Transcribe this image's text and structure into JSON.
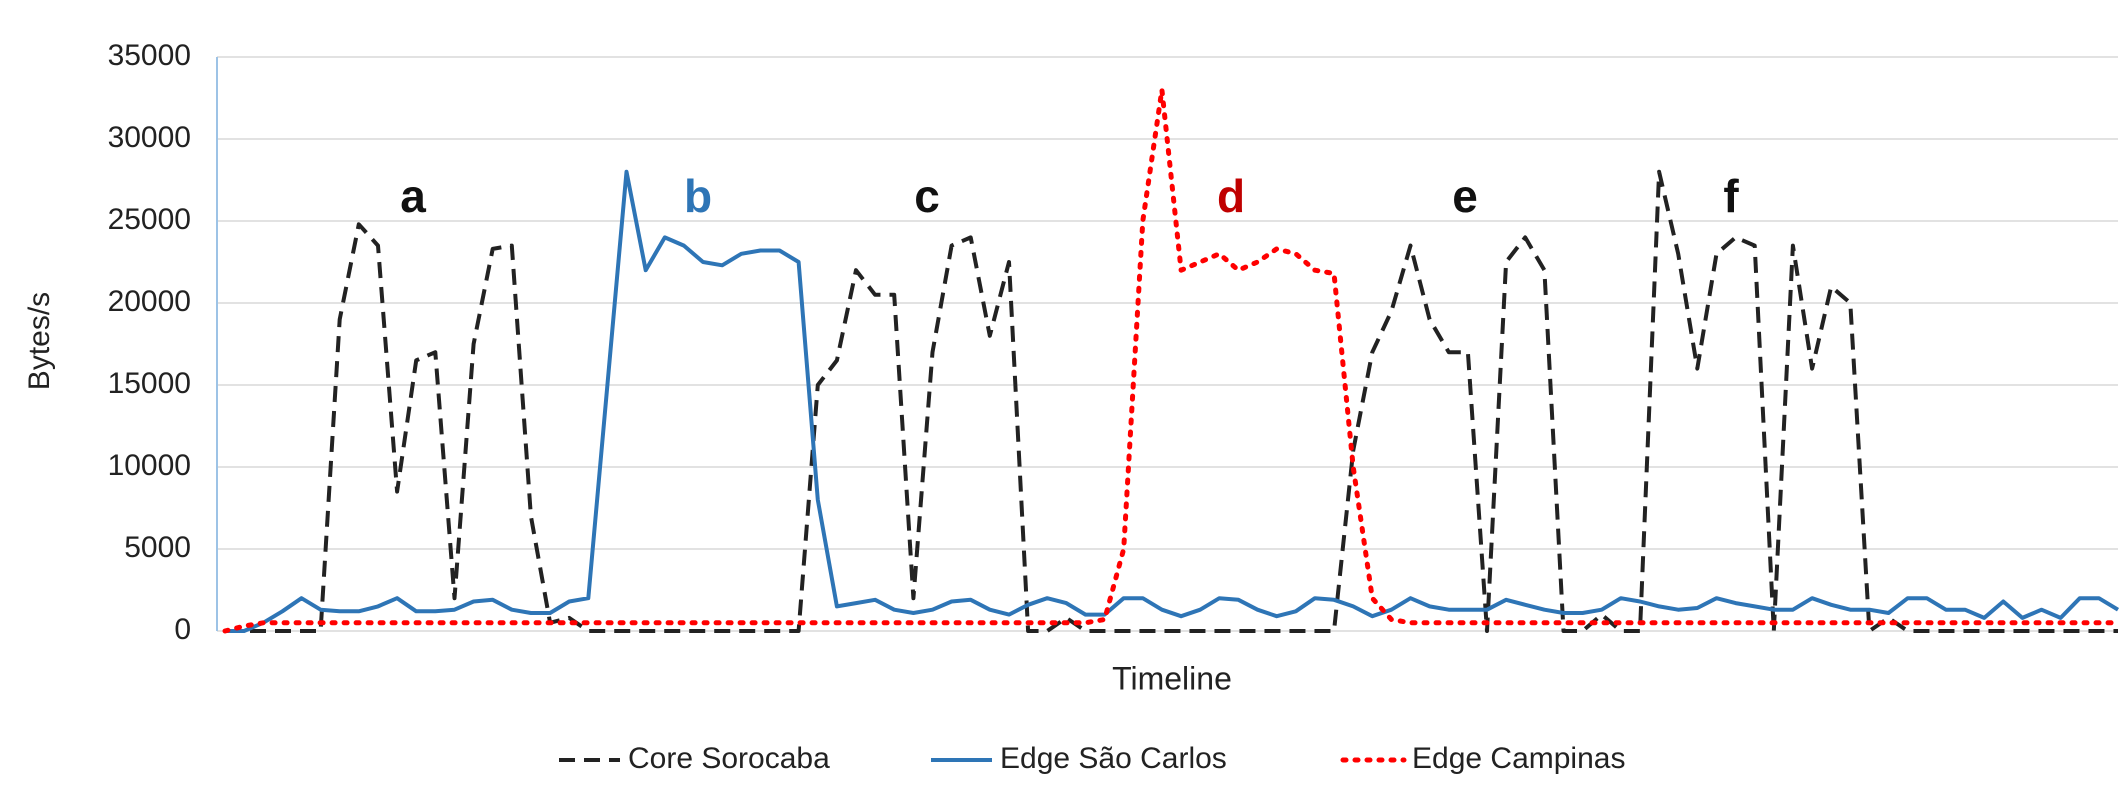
{
  "chart_data": {
    "type": "line",
    "ylabel": "Bytes/s",
    "xlabel": "Timeline",
    "ylim": [
      0,
      35000
    ],
    "yticks": [
      0,
      5000,
      10000,
      15000,
      20000,
      25000,
      30000,
      35000
    ],
    "grid": true,
    "legend": "bottom",
    "categories": [
      null,
      null,
      null,
      null,
      null,
      null,
      null,
      null,
      null,
      null,
      null,
      null,
      null,
      null,
      null,
      null,
      null,
      null,
      null,
      null,
      null,
      null,
      null,
      null,
      null,
      null,
      null,
      null,
      null,
      null,
      null,
      null,
      null,
      null,
      null,
      null,
      null,
      null,
      null,
      null,
      null,
      null,
      null,
      null,
      null,
      null,
      null,
      null,
      null,
      null,
      null,
      null,
      null,
      null,
      null,
      null,
      null,
      null,
      null,
      null,
      null,
      null,
      null,
      null,
      null,
      null,
      null,
      null,
      null,
      null,
      null,
      null,
      null,
      null,
      null,
      null,
      null,
      null,
      null,
      null,
      null,
      null,
      null,
      null,
      null,
      null,
      null,
      null,
      null,
      null,
      null,
      null,
      null,
      null,
      null,
      null,
      null,
      null,
      null,
      null
    ],
    "series": [
      {
        "name": "Core Sorocaba",
        "color": "#222222",
        "style": "dashed",
        "values": [
          0,
          0,
          0,
          0,
          0,
          0,
          19000,
          24800,
          23500,
          8500,
          16500,
          17000,
          2000,
          17500,
          23300,
          23500,
          7000,
          500,
          800,
          0,
          0,
          0,
          0,
          0,
          0,
          0,
          0,
          0,
          0,
          0,
          0,
          15000,
          16500,
          22000,
          20500,
          20500,
          2000,
          17000,
          23500,
          24000,
          18000,
          22500,
          0,
          0,
          800,
          0,
          0,
          0,
          0,
          0,
          0,
          0,
          0,
          0,
          0,
          0,
          0,
          0,
          0,
          11000,
          17000,
          19500,
          23500,
          19000,
          17000,
          17000,
          0,
          22500,
          24000,
          22000,
          0,
          0,
          1000,
          0,
          0,
          28000,
          23000,
          16000,
          23000,
          24000,
          23500,
          0,
          23500,
          16000,
          21000,
          20000,
          0,
          800,
          0,
          0,
          0,
          0,
          0,
          0,
          0,
          0,
          0,
          0,
          0,
          0
        ]
      },
      {
        "name": "Edge São Carlos",
        "color": "#2e75b6",
        "style": "solid",
        "values": [
          0,
          0,
          500,
          1200,
          2000,
          1300,
          1200,
          1200,
          1500,
          2000,
          1200,
          1200,
          1300,
          1800,
          1900,
          1300,
          1100,
          1100,
          1800,
          2000,
          15000,
          28000,
          22000,
          24000,
          23500,
          22500,
          22300,
          23000,
          23200,
          23200,
          22500,
          8000,
          1500,
          1700,
          1900,
          1300,
          1100,
          1300,
          1800,
          1900,
          1300,
          1000,
          1600,
          2000,
          1700,
          1000,
          1000,
          2000,
          2000,
          1300,
          900,
          1300,
          2000,
          1900,
          1300,
          900,
          1200,
          2000,
          1900,
          1500,
          900,
          1300,
          2000,
          1500,
          1300,
          1300,
          1300,
          1900,
          1600,
          1300,
          1100,
          1100,
          1300,
          2000,
          1800,
          1500,
          1300,
          1400,
          2000,
          1700,
          1500,
          1300,
          1300,
          2000,
          1600,
          1300,
          1300,
          1100,
          2000,
          2000,
          1300,
          1300,
          800,
          1800,
          800,
          1300,
          800,
          2000,
          2000,
          1300
        ]
      },
      {
        "name": "Edge Campinas",
        "color": "#ff0000",
        "style": "dotted",
        "values": [
          0,
          300,
          500,
          500,
          500,
          500,
          500,
          500,
          500,
          500,
          500,
          500,
          500,
          500,
          500,
          500,
          500,
          500,
          500,
          500,
          500,
          500,
          500,
          500,
          500,
          500,
          500,
          500,
          500,
          500,
          500,
          500,
          500,
          500,
          500,
          500,
          500,
          500,
          500,
          500,
          500,
          500,
          500,
          500,
          500,
          500,
          700,
          5000,
          25000,
          33000,
          22000,
          22500,
          23000,
          22000,
          22500,
          23300,
          23000,
          22000,
          21800,
          10000,
          2000,
          700,
          500,
          500,
          500,
          500,
          500,
          500,
          500,
          500,
          500,
          500,
          500,
          500,
          500,
          500,
          500,
          500,
          500,
          500,
          500,
          500,
          500,
          500,
          500,
          500,
          500,
          500,
          500,
          500,
          500,
          500,
          500,
          500,
          500,
          500,
          500,
          500,
          500,
          500
        ]
      }
    ],
    "annotations": [
      {
        "text": "a",
        "color": "#111111"
      },
      {
        "text": "b",
        "color": "#2e75b6"
      },
      {
        "text": "c",
        "color": "#111111"
      },
      {
        "text": "d",
        "color": "#c00000"
      },
      {
        "text": "e",
        "color": "#111111"
      },
      {
        "text": "f",
        "color": "#111111"
      }
    ]
  }
}
